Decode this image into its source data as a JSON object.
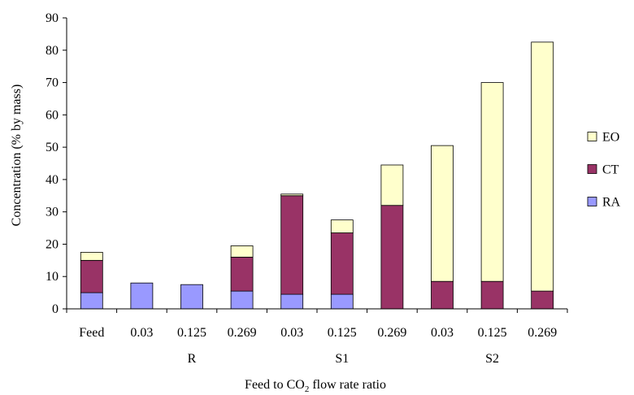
{
  "chart_data": {
    "type": "bar",
    "stacked": true,
    "categories": [
      "Feed",
      "0.03",
      "0.125",
      "0.269",
      "0.03",
      "0.125",
      "0.269",
      "0.03",
      "0.125",
      "0.269"
    ],
    "groups": [
      {
        "label": "",
        "span": [
          0,
          0
        ]
      },
      {
        "label": "R",
        "span": [
          1,
          3
        ]
      },
      {
        "label": "S1",
        "span": [
          4,
          6
        ]
      },
      {
        "label": "S2",
        "span": [
          7,
          9
        ]
      }
    ],
    "series": [
      {
        "name": "RA",
        "color": "#9999ff",
        "values": [
          5,
          8,
          7.5,
          5.5,
          4.5,
          4.5,
          0,
          0,
          0,
          0
        ]
      },
      {
        "name": "CT",
        "color": "#993366",
        "values": [
          10,
          0,
          0,
          10.5,
          30.5,
          19,
          32,
          8.5,
          8.5,
          5.5
        ]
      },
      {
        "name": "EO",
        "color": "#ffffcc",
        "values": [
          2.5,
          0,
          0,
          3.5,
          0.5,
          4,
          12.5,
          42,
          61.5,
          77
        ]
      }
    ],
    "legend_order": [
      "EO",
      "CT",
      "RA"
    ],
    "legend_position": "right",
    "xlabel_parts": {
      "before": "Feed to CO",
      "sub": "2",
      "after": " flow rate ratio"
    },
    "ylabel": "Concentration (% by mass)",
    "ylim": [
      0,
      90
    ],
    "yticks": [
      0,
      10,
      20,
      30,
      40,
      50,
      60,
      70,
      80,
      90
    ],
    "grid": false
  }
}
